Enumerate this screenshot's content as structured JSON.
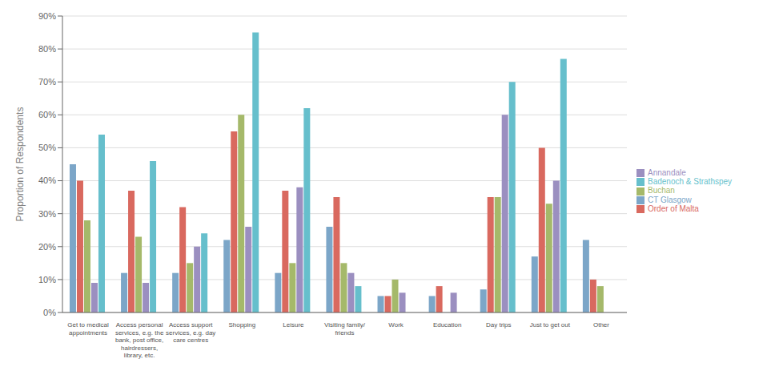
{
  "chart_data": {
    "type": "bar",
    "categories": [
      "Get to medical\nappointments",
      "Access personal\nservices, e.g. the\nbank, post office,\nhairdressers,\nlibrary, etc.",
      "Access support\nservices, e.g. day\ncare centres",
      "Shopping",
      "Leisure",
      "Visiting family/\nfriends",
      "Work",
      "Education",
      "Day trips",
      "Just to get out",
      "Other"
    ],
    "series": [
      {
        "name": "CT Glasgow",
        "color": "#7CA6C8",
        "values": [
          45,
          12,
          12,
          22,
          12,
          26,
          5,
          5,
          7,
          17,
          22
        ]
      },
      {
        "name": "Order of Malta",
        "color": "#D9695F",
        "values": [
          40,
          37,
          32,
          55,
          37,
          35,
          5,
          8,
          35,
          50,
          10
        ]
      },
      {
        "name": "Buchan",
        "color": "#A5B96A",
        "values": [
          28,
          23,
          15,
          60,
          15,
          15,
          10,
          0,
          35,
          33,
          8
        ]
      },
      {
        "name": "Annandale",
        "color": "#9B8FC0",
        "values": [
          9,
          9,
          20,
          26,
          38,
          12,
          6,
          6,
          60,
          40,
          0
        ]
      },
      {
        "name": "Badenoch & Strathspey",
        "color": "#66BFCC",
        "values": [
          54,
          46,
          24,
          85,
          62,
          8,
          0,
          0,
          70,
          77,
          0
        ]
      }
    ],
    "ylabel": "Proportion of Respondents",
    "ylim": [
      0,
      90
    ],
    "yticks": [
      {
        "value": 0,
        "label": "0%"
      },
      {
        "value": 10,
        "label": "10%"
      },
      {
        "value": 20,
        "label": "20%"
      },
      {
        "value": 30,
        "label": "30%"
      },
      {
        "value": 40,
        "label": "40%"
      },
      {
        "value": 50,
        "label": "50%"
      },
      {
        "value": 60,
        "label": "60%"
      },
      {
        "value": 70,
        "label": "70%"
      },
      {
        "value": 80,
        "label": "80%"
      },
      {
        "value": 90,
        "label": "90%"
      }
    ],
    "grid": true,
    "legend": "right"
  }
}
